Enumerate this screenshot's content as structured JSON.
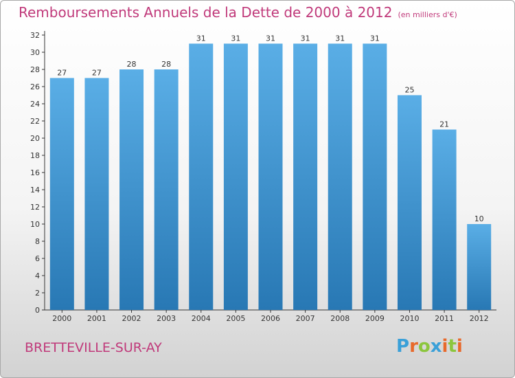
{
  "title": "Remboursements Annuels de la Dette de 2000 à 2012",
  "unit_note": "(en milliers d'€)",
  "commune": "BRETTEVILLE-SUR-AY",
  "logo": {
    "letters": [
      "P",
      "r",
      "o",
      "x",
      "i",
      "t",
      "i"
    ],
    "colors": [
      "#3aa0d8",
      "#e8692b",
      "#8cc63e",
      "#3aa0d8",
      "#e8692b",
      "#8cc63e",
      "#e8692b"
    ]
  },
  "colors": {
    "bar_top": "#5aaee6",
    "bar_bottom": "#2878b4",
    "title": "#c0397a"
  },
  "chart_data": {
    "type": "bar",
    "categories": [
      "2000",
      "2001",
      "2002",
      "2003",
      "2004",
      "2005",
      "2006",
      "2007",
      "2008",
      "2009",
      "2010",
      "2011",
      "2012"
    ],
    "values": [
      27,
      27,
      28,
      28,
      31,
      31,
      31,
      31,
      31,
      31,
      25,
      21,
      10
    ],
    "ylim": [
      0,
      32
    ],
    "y_ticks": [
      0,
      2,
      4,
      6,
      8,
      10,
      12,
      14,
      16,
      18,
      20,
      22,
      24,
      26,
      28,
      30,
      32
    ],
    "grid": false,
    "legend": "none"
  }
}
